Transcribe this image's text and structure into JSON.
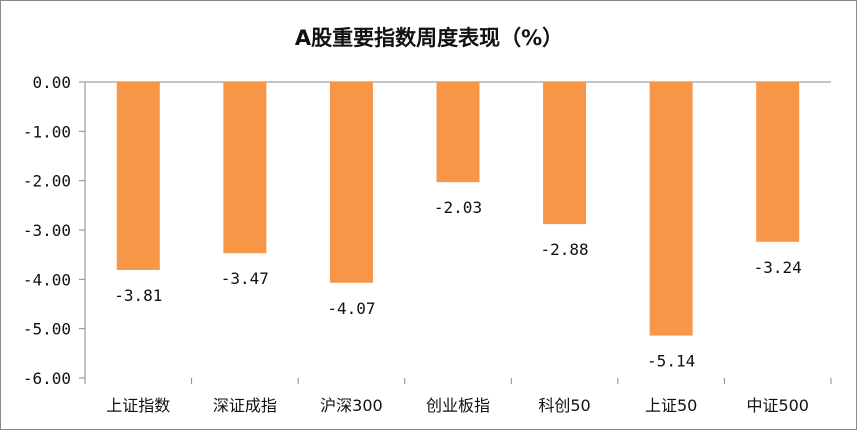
{
  "chart_data": {
    "type": "bar",
    "title": "A股重要指数周度表现（%）",
    "categories": [
      "上证指数",
      "深证成指",
      "沪深300",
      "创业板指",
      "科创50",
      "上证50",
      "中证500"
    ],
    "series": [
      {
        "values": [
          -3.81,
          -3.47,
          -4.07,
          -2.03,
          -2.88,
          -5.14,
          -3.24
        ]
      }
    ],
    "data_labels": [
      "-3.81",
      "-3.47",
      "-4.07",
      "-2.03",
      "-2.88",
      "-5.14",
      "-3.24"
    ],
    "y_ticks": [
      0,
      -1,
      -2,
      -3,
      -4,
      -5,
      -6
    ],
    "y_tick_labels": [
      "0.00",
      "-1.00",
      "-2.00",
      "-3.00",
      "-4.00",
      "-5.00",
      "-6.00"
    ],
    "ylim": [
      -6,
      0
    ],
    "xlabel": "",
    "ylabel": "",
    "grid": false,
    "legend": "none",
    "bar_color": "#F79646",
    "axis_color": "#8a8a8a"
  }
}
